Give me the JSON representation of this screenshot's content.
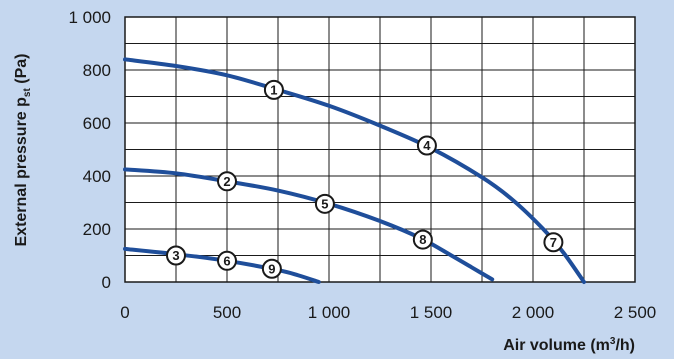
{
  "chart_data": {
    "type": "line",
    "xlabel": "Air volume (m³/h)",
    "ylabel": "External pressure pst (Pa)",
    "xlim": [
      0,
      2500
    ],
    "ylim": [
      0,
      1000
    ],
    "x_ticks": [
      0,
      500,
      1000,
      1500,
      2000,
      2500
    ],
    "x_tick_labels": [
      "0",
      "500",
      "1 000",
      "1 500",
      "2 000",
      "2 500"
    ],
    "y_ticks": [
      0,
      200,
      400,
      600,
      800,
      1000
    ],
    "y_tick_labels": [
      "0",
      "200",
      "400",
      "600",
      "800",
      "1 000"
    ],
    "grid": true,
    "line_color": "#1f4e9a",
    "series": [
      {
        "x": [
          0,
          250,
          500,
          750,
          1000,
          1250,
          1500,
          1750,
          1900,
          2050,
          2150,
          2250
        ],
        "y": [
          840,
          815,
          780,
          725,
          665,
          590,
          505,
          395,
          310,
          200,
          110,
          0
        ]
      },
      {
        "x": [
          0,
          250,
          500,
          750,
          1000,
          1250,
          1450,
          1600,
          1700,
          1800
        ],
        "y": [
          425,
          410,
          380,
          345,
          295,
          230,
          165,
          100,
          55,
          10
        ]
      },
      {
        "x": [
          0,
          250,
          500,
          750,
          850,
          950
        ],
        "y": [
          125,
          105,
          80,
          45,
          25,
          0
        ]
      }
    ],
    "markers": [
      {
        "label": "1",
        "x": 730,
        "y": 725
      },
      {
        "label": "2",
        "x": 500,
        "y": 380
      },
      {
        "label": "3",
        "x": 250,
        "y": 100
      },
      {
        "label": "4",
        "x": 1480,
        "y": 515
      },
      {
        "label": "5",
        "x": 980,
        "y": 295
      },
      {
        "label": "6",
        "x": 500,
        "y": 80
      },
      {
        "label": "7",
        "x": 2100,
        "y": 150
      },
      {
        "label": "8",
        "x": 1460,
        "y": 160
      },
      {
        "label": "9",
        "x": 720,
        "y": 50
      }
    ]
  }
}
